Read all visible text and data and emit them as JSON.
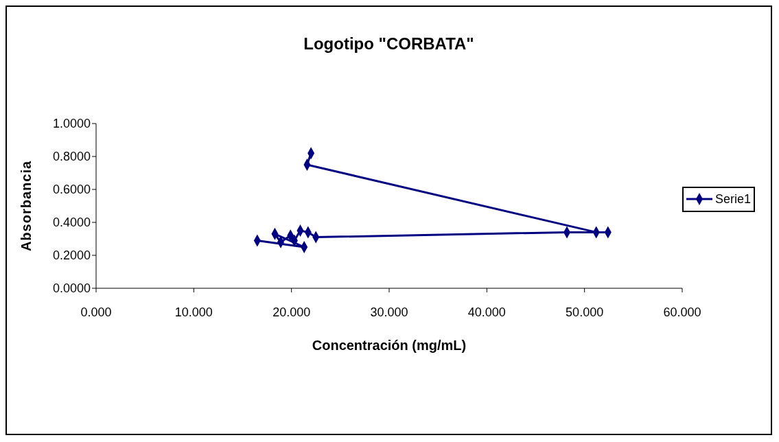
{
  "chart_data": {
    "type": "line",
    "title": "Logotipo \"CORBATA\"",
    "xlabel": "Concentración (mg/mL)",
    "ylabel": "Absorbancia",
    "series": [
      {
        "name": "Serie1",
        "color": "#000080",
        "x": [
          16.5,
          21.3,
          18.3,
          18.9,
          19.9,
          20.3,
          20.9,
          21.7,
          22.5,
          48.2,
          52.4,
          51.2,
          21.6,
          22.0
        ],
        "values": [
          0.29,
          0.25,
          0.33,
          0.28,
          0.32,
          0.29,
          0.35,
          0.34,
          0.31,
          0.34,
          0.34,
          0.34,
          0.75,
          0.82
        ]
      }
    ],
    "xlim": [
      0,
      60
    ],
    "xticks": [
      {
        "value": 0,
        "label": "0.000"
      },
      {
        "value": 10,
        "label": "10.000"
      },
      {
        "value": 20,
        "label": "20.000"
      },
      {
        "value": 30,
        "label": "30.000"
      },
      {
        "value": 40,
        "label": "40.000"
      },
      {
        "value": 50,
        "label": "50.000"
      },
      {
        "value": 60,
        "label": "60.000"
      }
    ],
    "ylim": [
      0,
      1
    ],
    "yticks": [
      {
        "value": 0,
        "label": "0.0000"
      },
      {
        "value": 0.2,
        "label": "0.2000"
      },
      {
        "value": 0.4,
        "label": "0.4000"
      },
      {
        "value": 0.6,
        "label": "0.6000"
      },
      {
        "value": 0.8,
        "label": "0.8000"
      },
      {
        "value": 1,
        "label": "1.0000"
      }
    ],
    "grid": false,
    "legend": "right",
    "marker": "diamond",
    "line_style": "solid"
  }
}
